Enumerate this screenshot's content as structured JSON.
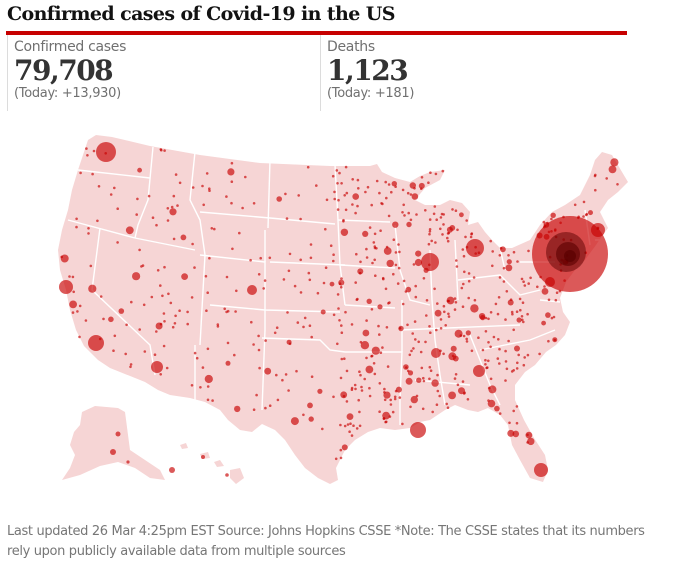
{
  "title": "Confirmed cases of Covid-19 in the US",
  "accent_color": "#c70000",
  "stats": {
    "cases": {
      "label": "Confirmed cases",
      "value": "79,708",
      "today": "(Today: +13,930)"
    },
    "deaths": {
      "label": "Deaths",
      "value": "1,123",
      "today": "(Today: +181)"
    }
  },
  "map": {
    "type": "bubble-map",
    "region": "United States (counties)",
    "land_color": "#f6d5d5",
    "border_color": "#ffffff",
    "bubble_color": "#c70000",
    "hotspots": [
      {
        "name": "New York City area",
        "relative_size": 1.0
      },
      {
        "name": "Seattle / King County",
        "relative_size": 0.25
      },
      {
        "name": "Detroit area",
        "relative_size": 0.2
      },
      {
        "name": "Chicago / Cook County",
        "relative_size": 0.2
      },
      {
        "name": "Los Angeles",
        "relative_size": 0.18
      },
      {
        "name": "New Orleans",
        "relative_size": 0.16
      },
      {
        "name": "Miami-Dade / Broward",
        "relative_size": 0.14
      },
      {
        "name": "Boston area",
        "relative_size": 0.12
      },
      {
        "name": "Bay Area",
        "relative_size": 0.12
      },
      {
        "name": "Denver area",
        "relative_size": 0.1
      },
      {
        "name": "Atlanta area",
        "relative_size": 0.1
      },
      {
        "name": "Philadelphia area",
        "relative_size": 0.1
      },
      {
        "name": "Phoenix",
        "relative_size": 0.1
      },
      {
        "name": "Dallas",
        "relative_size": 0.09
      }
    ]
  },
  "footer": "Last updated 26 Mar 4:25pm EST Source: Johns Hopkins CSSE *Note: The CSSE states that its numbers rely upon publicly available data from multiple sources"
}
